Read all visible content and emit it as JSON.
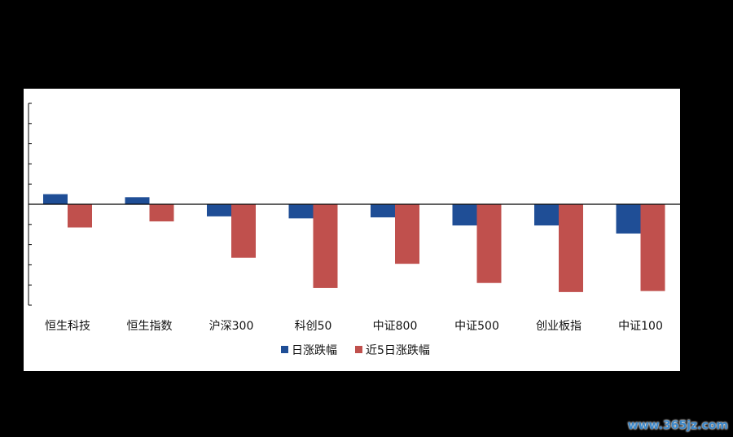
{
  "chart_data": {
    "type": "bar",
    "title": "",
    "categories": [
      "恒生科技",
      "恒生指数",
      "沪深300",
      "科创50",
      "中证800",
      "中证500",
      "创业板指",
      "中证100"
    ],
    "series": [
      {
        "name": "日涨跌幅",
        "color": "#1f4e96",
        "values": [
          0.5,
          0.35,
          -0.6,
          -0.7,
          -0.65,
          -1.05,
          -1.05,
          -1.45
        ]
      },
      {
        "name": "近5日涨跌幅",
        "color": "#c0504d",
        "values": [
          -1.15,
          -0.85,
          -2.65,
          -4.15,
          -2.95,
          -3.9,
          -4.35,
          -4.3
        ]
      }
    ],
    "ylim": [
      -5,
      5
    ],
    "yticks": [
      5,
      4,
      3,
      2,
      1,
      0,
      -1,
      -2,
      -3,
      -4,
      -5
    ],
    "grid": false,
    "legend_position": "bottom-center",
    "xlabel": "",
    "ylabel": ""
  },
  "source_text": "",
  "watermark": "www.365jz.com"
}
